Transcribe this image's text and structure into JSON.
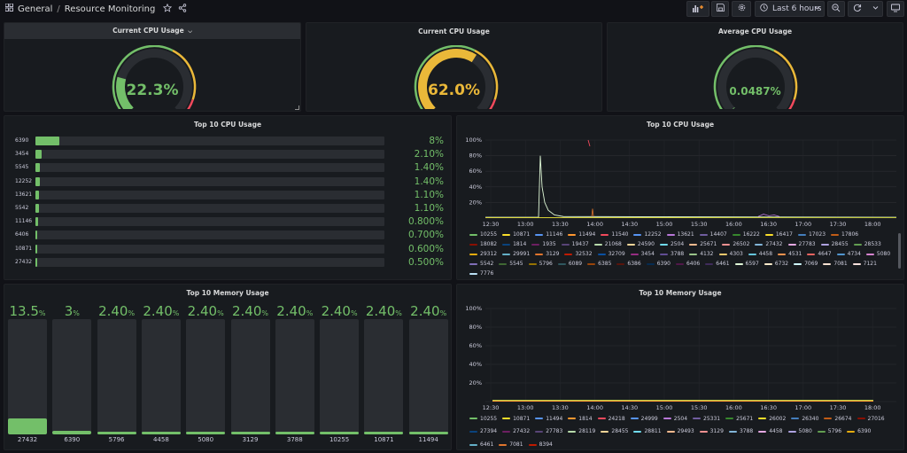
{
  "breadcrumb": {
    "folder": "General",
    "separator": "/",
    "dashboard": "Resource Monitoring"
  },
  "toolbar": {
    "time_range": "Last 6 hours"
  },
  "icons": [
    "grid-icon",
    "star-icon",
    "share-icon",
    "add-panel-icon",
    "save-icon",
    "gear-icon",
    "clock-icon",
    "chevron-down-icon",
    "zoom-out-icon",
    "refresh-icon",
    "tv-icon"
  ],
  "colors": {
    "green": "#73bf69",
    "yellow": "#eab839",
    "red": "#f2495c",
    "panel": "#181b1f",
    "bg": "#111217"
  },
  "gauges": [
    {
      "title": "Current CPU Usage",
      "value": "22.3%",
      "fraction": 0.223,
      "color": "#73bf69",
      "has_menu": true
    },
    {
      "title": "Current CPU Usage",
      "value": "62.0%",
      "fraction": 0.62,
      "color": "#eab839",
      "has_menu": false
    },
    {
      "title": "Average CPU Usage",
      "value": "0.0487%",
      "fraction": 0.0005,
      "color": "#73bf69",
      "has_menu": false
    }
  ],
  "cpu_bars": {
    "title": "Top 10 CPU Usage",
    "rows": [
      {
        "label": "6390",
        "value": "8%",
        "fraction": 0.08
      },
      {
        "label": "3454",
        "value": "2.10%",
        "fraction": 0.021
      },
      {
        "label": "5545",
        "value": "1.40%",
        "fraction": 0.014
      },
      {
        "label": "12252",
        "value": "1.40%",
        "fraction": 0.014
      },
      {
        "label": "13621",
        "value": "1.10%",
        "fraction": 0.011
      },
      {
        "label": "5542",
        "value": "1.10%",
        "fraction": 0.011
      },
      {
        "label": "11146",
        "value": "0.800%",
        "fraction": 0.008
      },
      {
        "label": "6406",
        "value": "0.700%",
        "fraction": 0.007
      },
      {
        "label": "10871",
        "value": "0.600%",
        "fraction": 0.006
      },
      {
        "label": "27432",
        "value": "0.500%",
        "fraction": 0.005
      }
    ]
  },
  "mem_bars": {
    "title": "Top 10 Memory Usage",
    "cols": [
      {
        "label": "27432",
        "value": "13.5",
        "unit": "%",
        "fraction": 0.135
      },
      {
        "label": "6390",
        "value": "3",
        "unit": "%",
        "fraction": 0.03
      },
      {
        "label": "5796",
        "value": "2.40",
        "unit": "%",
        "fraction": 0.024
      },
      {
        "label": "4458",
        "value": "2.40",
        "unit": "%",
        "fraction": 0.024
      },
      {
        "label": "5080",
        "value": "2.40",
        "unit": "%",
        "fraction": 0.024
      },
      {
        "label": "3129",
        "value": "2.40",
        "unit": "%",
        "fraction": 0.024
      },
      {
        "label": "3788",
        "value": "2.40",
        "unit": "%",
        "fraction": 0.024
      },
      {
        "label": "10255",
        "value": "2.40",
        "unit": "%",
        "fraction": 0.024
      },
      {
        "label": "10871",
        "value": "2.40",
        "unit": "%",
        "fraction": 0.024
      },
      {
        "label": "11494",
        "value": "2.40",
        "unit": "%",
        "fraction": 0.024
      }
    ]
  },
  "cpu_timeseries": {
    "title": "Top 10 CPU Usage",
    "y_ticks": [
      "100%",
      "80%",
      "60%",
      "40%",
      "20%"
    ],
    "x_ticks": [
      "12:30",
      "13:00",
      "13:30",
      "14:00",
      "14:30",
      "15:00",
      "15:30",
      "16:00",
      "16:30",
      "17:00",
      "17:30",
      "18:00"
    ],
    "legend": [
      {
        "name": "10255",
        "color": "#73bf69"
      },
      {
        "name": "10871",
        "color": "#fade2a"
      },
      {
        "name": "11146",
        "color": "#5794f2"
      },
      {
        "name": "11494",
        "color": "#ff9830"
      },
      {
        "name": "11540",
        "color": "#f2495c"
      },
      {
        "name": "12252",
        "color": "#5794f2"
      },
      {
        "name": "13621",
        "color": "#b877d9"
      },
      {
        "name": "14407",
        "color": "#705da0"
      },
      {
        "name": "16222",
        "color": "#37872d"
      },
      {
        "name": "16417",
        "color": "#fade2a"
      },
      {
        "name": "17023",
        "color": "#447ebc"
      },
      {
        "name": "17806",
        "color": "#c15c17"
      },
      {
        "name": "18082",
        "color": "#890f02"
      },
      {
        "name": "1814",
        "color": "#0a437c"
      },
      {
        "name": "1935",
        "color": "#6d1f62"
      },
      {
        "name": "19437",
        "color": "#584477"
      },
      {
        "name": "21068",
        "color": "#b7dbab"
      },
      {
        "name": "24590",
        "color": "#f4d598"
      },
      {
        "name": "2504",
        "color": "#70dbed"
      },
      {
        "name": "25671",
        "color": "#f9ba8f"
      },
      {
        "name": "26502",
        "color": "#f29191"
      },
      {
        "name": "27432",
        "color": "#82b5d8"
      },
      {
        "name": "27783",
        "color": "#e5a8e2"
      },
      {
        "name": "28455",
        "color": "#aea2e0"
      },
      {
        "name": "28533",
        "color": "#629e51"
      },
      {
        "name": "29312",
        "color": "#e5ac0e"
      },
      {
        "name": "29991",
        "color": "#64b0c8"
      },
      {
        "name": "3129",
        "color": "#e0752d"
      },
      {
        "name": "32532",
        "color": "#bf1b00"
      },
      {
        "name": "32709",
        "color": "#0a50a1"
      },
      {
        "name": "3454",
        "color": "#962d82"
      },
      {
        "name": "3788",
        "color": "#614d93"
      },
      {
        "name": "4132",
        "color": "#9ac48a"
      },
      {
        "name": "4303",
        "color": "#f2c96d"
      },
      {
        "name": "4458",
        "color": "#65c5db"
      },
      {
        "name": "4531",
        "color": "#f9934e"
      },
      {
        "name": "4647",
        "color": "#ea6460"
      },
      {
        "name": "4734",
        "color": "#5195ce"
      },
      {
        "name": "5080",
        "color": "#d683ce"
      },
      {
        "name": "5542",
        "color": "#806eb7"
      },
      {
        "name": "5545",
        "color": "#3f6833"
      },
      {
        "name": "5796",
        "color": "#967302"
      },
      {
        "name": "6089",
        "color": "#2f575e"
      },
      {
        "name": "6385",
        "color": "#99440a"
      },
      {
        "name": "6386",
        "color": "#58140c"
      },
      {
        "name": "6390",
        "color": "#052b51"
      },
      {
        "name": "6406",
        "color": "#511749"
      },
      {
        "name": "6461",
        "color": "#3f2b5b"
      },
      {
        "name": "6597",
        "color": "#e0f9d7"
      },
      {
        "name": "6732",
        "color": "#fceaca"
      },
      {
        "name": "7069",
        "color": "#cffaff"
      },
      {
        "name": "7081",
        "color": "#f9e2d2"
      },
      {
        "name": "7121",
        "color": "#fce2de"
      },
      {
        "name": "7776",
        "color": "#badff4"
      }
    ]
  },
  "mem_timeseries": {
    "title": "Top 10 Memory Usage",
    "y_ticks": [
      "100%",
      "80%",
      "60%",
      "40%",
      "20%"
    ],
    "x_ticks": [
      "12:30",
      "13:00",
      "13:30",
      "14:00",
      "14:30",
      "15:00",
      "15:30",
      "16:00",
      "16:30",
      "17:00",
      "17:30",
      "18:00"
    ],
    "legend": [
      {
        "name": "10255",
        "color": "#73bf69"
      },
      {
        "name": "10871",
        "color": "#fade2a"
      },
      {
        "name": "11494",
        "color": "#5794f2"
      },
      {
        "name": "1814",
        "color": "#ff9830"
      },
      {
        "name": "24218",
        "color": "#f2495c"
      },
      {
        "name": "24999",
        "color": "#5794f2"
      },
      {
        "name": "2504",
        "color": "#b877d9"
      },
      {
        "name": "25331",
        "color": "#705da0"
      },
      {
        "name": "25671",
        "color": "#37872d"
      },
      {
        "name": "26002",
        "color": "#fade2a"
      },
      {
        "name": "26340",
        "color": "#447ebc"
      },
      {
        "name": "26674",
        "color": "#c15c17"
      },
      {
        "name": "27016",
        "color": "#890f02"
      },
      {
        "name": "27394",
        "color": "#0a437c"
      },
      {
        "name": "27432",
        "color": "#6d1f62"
      },
      {
        "name": "27783",
        "color": "#584477"
      },
      {
        "name": "28119",
        "color": "#b7dbab"
      },
      {
        "name": "28455",
        "color": "#f4d598"
      },
      {
        "name": "28811",
        "color": "#70dbed"
      },
      {
        "name": "29493",
        "color": "#f9ba8f"
      },
      {
        "name": "3129",
        "color": "#f29191"
      },
      {
        "name": "3788",
        "color": "#82b5d8"
      },
      {
        "name": "4458",
        "color": "#e5a8e2"
      },
      {
        "name": "5080",
        "color": "#aea2e0"
      },
      {
        "name": "5796",
        "color": "#629e51"
      },
      {
        "name": "6390",
        "color": "#e5ac0e"
      },
      {
        "name": "6461",
        "color": "#64b0c8"
      },
      {
        "name": "7081",
        "color": "#e0752d"
      },
      {
        "name": "8394",
        "color": "#bf1b00"
      }
    ]
  }
}
